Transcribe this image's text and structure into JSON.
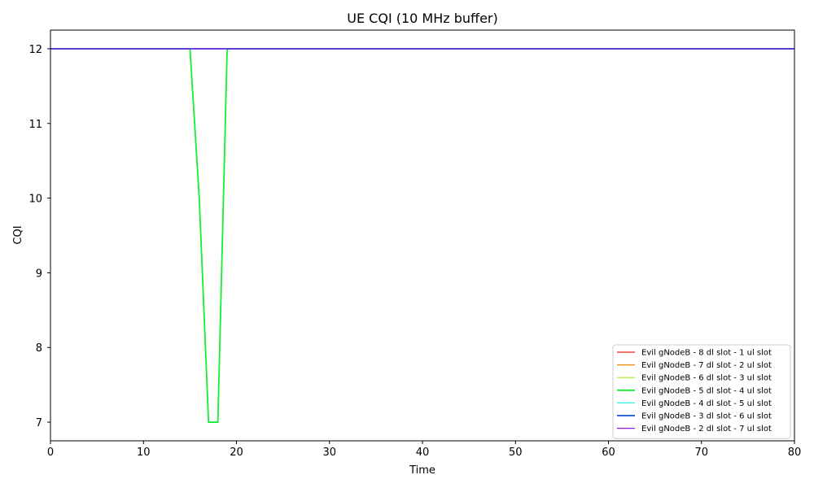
{
  "chart_data": {
    "type": "line",
    "title": "UE CQI (10 MHz buffer)",
    "xlabel": "Time",
    "ylabel": "CQI",
    "xlim": [
      0,
      80
    ],
    "ylim": [
      6.75,
      12.25
    ],
    "xticks": [
      0,
      10,
      20,
      30,
      40,
      50,
      60,
      70,
      80
    ],
    "yticks": [
      7,
      8,
      9,
      10,
      11,
      12
    ],
    "grid": false,
    "legend_position": "lower-right",
    "series": [
      {
        "name": "Evil gNodeB - 8 dl slot - 1 ul slot",
        "color": "#e8231a",
        "x": [
          0,
          80
        ],
        "y": [
          12,
          12
        ]
      },
      {
        "name": "Evil gNodeB - 7 dl slot - 2 ul slot",
        "color": "#f08c00",
        "x": [
          0,
          80
        ],
        "y": [
          12,
          12
        ]
      },
      {
        "name": "Evil gNodeB - 6 dl slot - 3 ul slot",
        "color": "#a6f020",
        "x": [
          0,
          80
        ],
        "y": [
          12,
          12
        ]
      },
      {
        "name": "Evil gNodeB - 5 dl slot - 4 ul slot",
        "color": "#10f030",
        "x": [
          0,
          15,
          16,
          17,
          18,
          19,
          80
        ],
        "y": [
          12,
          12,
          10,
          7,
          7,
          12,
          12
        ]
      },
      {
        "name": "Evil gNodeB - 4 dl slot - 5 ul slot",
        "color": "#30f0e0",
        "x": [
          0,
          80
        ],
        "y": [
          12,
          12
        ]
      },
      {
        "name": "Evil gNodeB - 3 dl slot - 6 ul slot",
        "color": "#1550d8",
        "x": [
          0,
          80
        ],
        "y": [
          12,
          12
        ]
      },
      {
        "name": "Evil gNodeB - 2 dl slot - 7 ul slot",
        "color": "#8a1fe0",
        "x": [
          0,
          80
        ],
        "y": [
          12,
          12
        ]
      }
    ]
  }
}
